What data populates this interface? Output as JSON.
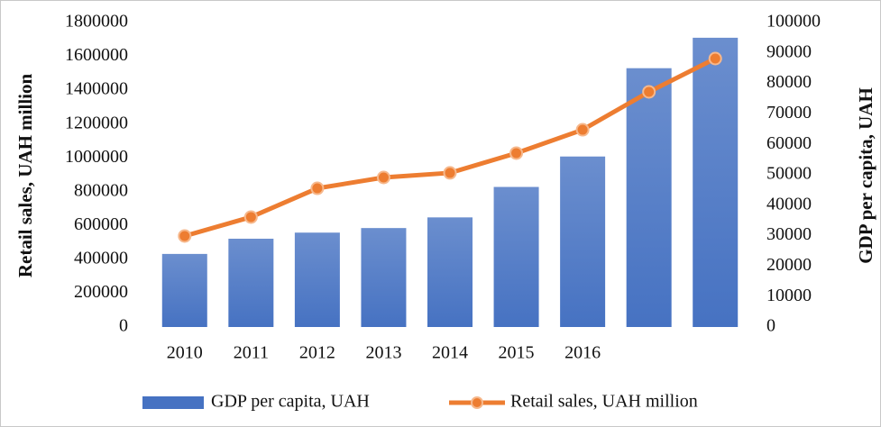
{
  "chart_data": {
    "type": "bar-line",
    "categories": [
      "2010",
      "2011",
      "2012",
      "2013",
      "2014",
      "2015",
      "2016",
      null,
      null
    ],
    "series": [
      {
        "name": "GDP per capita, UAH",
        "type": "bar",
        "axis": "y2",
        "color": "#4672c2",
        "values": [
          24000,
          29000,
          31000,
          32500,
          36000,
          46000,
          56000,
          85000,
          95000
        ]
      },
      {
        "name": "Retail sales, UAH million",
        "type": "line",
        "axis": "y",
        "color": "#ed7d31",
        "values": [
          538000,
          650000,
          820000,
          884000,
          911000,
          1028000,
          1166000,
          1390000,
          1587000
        ]
      }
    ],
    "ylabel": "Retail sales, UAH million",
    "y2label": "GDP per capita, UAH",
    "ylim": [
      0,
      1800000
    ],
    "yticks": [
      0,
      200000,
      400000,
      600000,
      800000,
      1000000,
      1200000,
      1400000,
      1600000,
      1800000
    ],
    "y2lim": [
      0,
      100000
    ],
    "y2ticks": [
      0,
      10000,
      20000,
      30000,
      40000,
      50000,
      60000,
      70000,
      80000,
      90000,
      100000
    ],
    "legend": "bottom"
  }
}
